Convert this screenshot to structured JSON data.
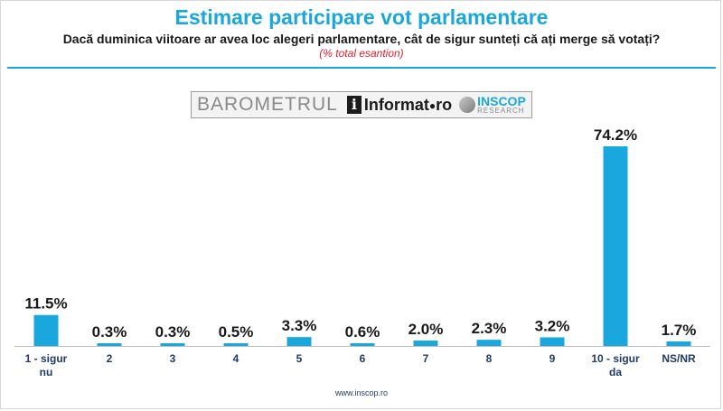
{
  "header": {
    "title": "Estimare participare vot parlamentare",
    "subtitle": "Dacă duminica viitoare ar avea loc alegeri parlamentare, cât de sigur sunteți că ați merge să votați?",
    "note": "(% total esantion)"
  },
  "logo": {
    "barometrul": "BAROMETRUL",
    "i_letter": "i",
    "informat": "Informat",
    "ro": "ro",
    "inscop": "INSCOP",
    "research": "RESEARCH"
  },
  "chart_data": {
    "type": "bar",
    "categories": [
      "1 - sigur nu",
      "2",
      "3",
      "4",
      "5",
      "6",
      "7",
      "8",
      "9",
      "10 - sigur da",
      "NS/NR"
    ],
    "category_lines": [
      [
        "1 - sigur",
        "nu"
      ],
      [
        "2"
      ],
      [
        "3"
      ],
      [
        "4"
      ],
      [
        "5"
      ],
      [
        "6"
      ],
      [
        "7"
      ],
      [
        "8"
      ],
      [
        "9"
      ],
      [
        "10 - sigur",
        "da"
      ],
      [
        "NS/NR"
      ]
    ],
    "values": [
      11.5,
      0.3,
      0.3,
      0.5,
      3.3,
      0.6,
      2.0,
      2.3,
      3.2,
      74.2,
      1.7
    ],
    "value_labels": [
      "11.5%",
      "0.3%",
      "0.3%",
      "0.5%",
      "3.3%",
      "0.6%",
      "2.0%",
      "2.3%",
      "3.2%",
      "74.2%",
      "1.7%"
    ],
    "ylim": [
      0,
      74.2
    ],
    "grid": false,
    "bar_color": "#19a7dd"
  },
  "footer": {
    "source": "www.inscop.ro"
  },
  "colors": {
    "accent": "#19a7dd",
    "note": "#e5202e",
    "axis_labels": "#1f3b66"
  }
}
